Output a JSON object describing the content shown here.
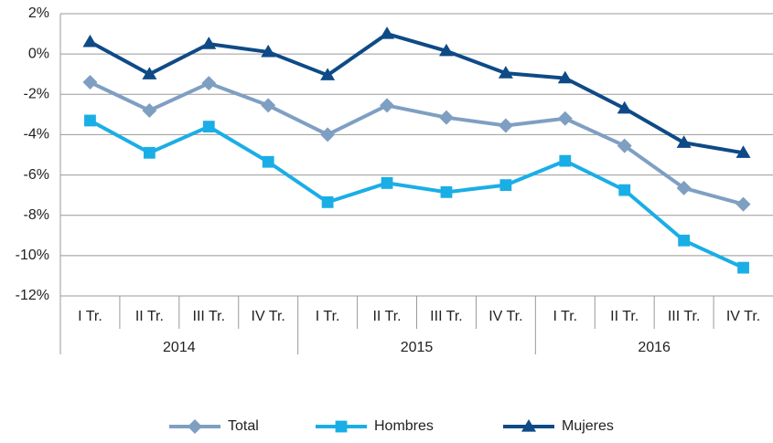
{
  "chart_data": {
    "type": "line",
    "categories": [
      "I Tr.",
      "II Tr.",
      "III Tr.",
      "IV Tr.",
      "I Tr.",
      "II Tr.",
      "III Tr.",
      "IV Tr.",
      "I Tr.",
      "II Tr.",
      "III Tr.",
      "IV Tr."
    ],
    "category_groups": [
      "2014",
      "2015",
      "2016"
    ],
    "series": [
      {
        "name": "Total",
        "color": "#7f9fc2",
        "marker": "diamond",
        "values": [
          -1.4,
          -2.8,
          -1.45,
          -2.55,
          -4.0,
          -2.55,
          -3.15,
          -3.55,
          -3.2,
          -4.55,
          -6.65,
          -7.45
        ]
      },
      {
        "name": "Hombres",
        "color": "#1aaee6",
        "marker": "square",
        "values": [
          -3.3,
          -4.9,
          -3.6,
          -5.35,
          -7.35,
          -6.4,
          -6.85,
          -6.5,
          -5.3,
          -6.75,
          -9.25,
          -10.6
        ]
      },
      {
        "name": "Mujeres",
        "color": "#0e4a86",
        "marker": "triangle",
        "values": [
          0.6,
          -1.0,
          0.5,
          0.1,
          -1.05,
          1.0,
          0.15,
          -0.95,
          -1.2,
          -2.7,
          -4.4,
          -4.9
        ]
      }
    ],
    "ylim": [
      -12,
      2
    ],
    "yticks": [
      {
        "value": 2,
        "label": "2%"
      },
      {
        "value": 0,
        "label": "0%"
      },
      {
        "value": -2,
        "label": "-2%"
      },
      {
        "value": -4,
        "label": "-4%"
      },
      {
        "value": -6,
        "label": "-6%"
      },
      {
        "value": -8,
        "label": "-8%"
      },
      {
        "value": -10,
        "label": "-10%"
      },
      {
        "value": -12,
        "label": "-12%"
      }
    ],
    "grid": true,
    "legend": "bottom"
  }
}
